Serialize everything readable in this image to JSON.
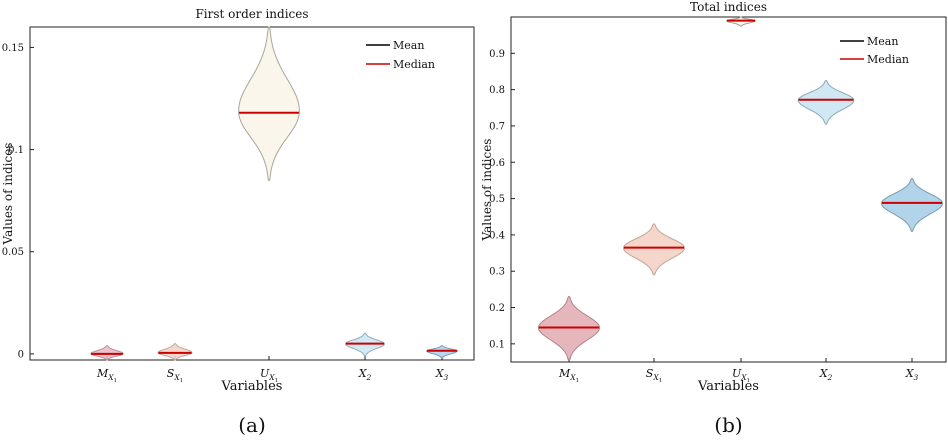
{
  "chart_data": [
    {
      "type": "violin",
      "title": "First order indices",
      "xlabel": "Variables",
      "ylabel": "Values of indices",
      "panel_label": "(a)",
      "ylim": [
        -0.003,
        0.16
      ],
      "yticks": [
        0,
        0.05,
        0.1,
        0.15
      ],
      "ytick_labels": [
        "0",
        "0.05",
        "0.1",
        "0.15"
      ],
      "grid": false,
      "legend": {
        "placement": "top-right",
        "entries": [
          {
            "label": "Mean",
            "color": "#000000"
          },
          {
            "label": "Median",
            "color": "#cc0000"
          }
        ]
      },
      "categories": [
        {
          "base": "M",
          "sub": "X",
          "subsub": "1",
          "median": 0.0,
          "mean": 0.0,
          "min": -0.003,
          "max": 0.004,
          "fill": "#e8b9c0",
          "edge": "#b9939a"
        },
        {
          "base": "S",
          "sub": "X",
          "subsub": "1",
          "median": 0.0005,
          "mean": 0.0005,
          "min": -0.003,
          "max": 0.005,
          "fill": "#f3d2c6",
          "edge": "#c0a79d"
        },
        {
          "base": "U",
          "sub": "X",
          "subsub": "1",
          "median": 0.118,
          "mean": 0.118,
          "min": 0.085,
          "max": 0.16,
          "fill": "#f9f5e8",
          "edge": "#a8a59a"
        },
        {
          "base": "X",
          "sub": "2",
          "subsub": "",
          "median": 0.005,
          "mean": 0.005,
          "min": -0.001,
          "max": 0.01,
          "fill": "#c9e6f3",
          "edge": "#93adb9"
        },
        {
          "base": "X",
          "sub": "3",
          "subsub": "",
          "median": 0.0015,
          "mean": 0.0015,
          "min": -0.002,
          "max": 0.004,
          "fill": "#a9d0ea",
          "edge": "#7e9cb0"
        }
      ]
    },
    {
      "type": "violin",
      "title": "Total indices",
      "xlabel": "Variables",
      "ylabel": "Values of indices",
      "panel_label": "(b)",
      "ylim": [
        0.05,
        1.0
      ],
      "yticks": [
        0.1,
        0.2,
        0.3,
        0.4,
        0.5,
        0.6,
        0.7,
        0.8,
        0.9
      ],
      "ytick_labels": [
        "0.1",
        "0.2",
        "0.3",
        "0.4",
        "0.5",
        "0.6",
        "0.7",
        "0.8",
        "0.9"
      ],
      "grid": false,
      "legend": {
        "placement": "top-right",
        "entries": [
          {
            "label": "Mean",
            "color": "#000000"
          },
          {
            "label": "Median",
            "color": "#cc0000"
          }
        ]
      },
      "categories": [
        {
          "base": "M",
          "sub": "X",
          "subsub": "1",
          "median": 0.145,
          "mean": 0.145,
          "min": 0.055,
          "max": 0.23,
          "fill": "#e2a9b2",
          "edge": "#b0858c"
        },
        {
          "base": "S",
          "sub": "X",
          "subsub": "1",
          "median": 0.365,
          "mean": 0.365,
          "min": 0.29,
          "max": 0.43,
          "fill": "#f3cfc1",
          "edge": "#c4a497"
        },
        {
          "base": "U",
          "sub": "X",
          "subsub": "1",
          "median": 0.99,
          "mean": 0.99,
          "min": 0.975,
          "max": 1.0,
          "fill": "#f8f3e6",
          "edge": "#a09d93"
        },
        {
          "base": "X",
          "sub": "2",
          "subsub": "",
          "median": 0.772,
          "mean": 0.772,
          "min": 0.705,
          "max": 0.825,
          "fill": "#c7e4f2",
          "edge": "#8eaab8"
        },
        {
          "base": "X",
          "sub": "3",
          "subsub": "",
          "median": 0.488,
          "mean": 0.488,
          "min": 0.41,
          "max": 0.555,
          "fill": "#a5cde8",
          "edge": "#7b99ae"
        }
      ]
    }
  ]
}
